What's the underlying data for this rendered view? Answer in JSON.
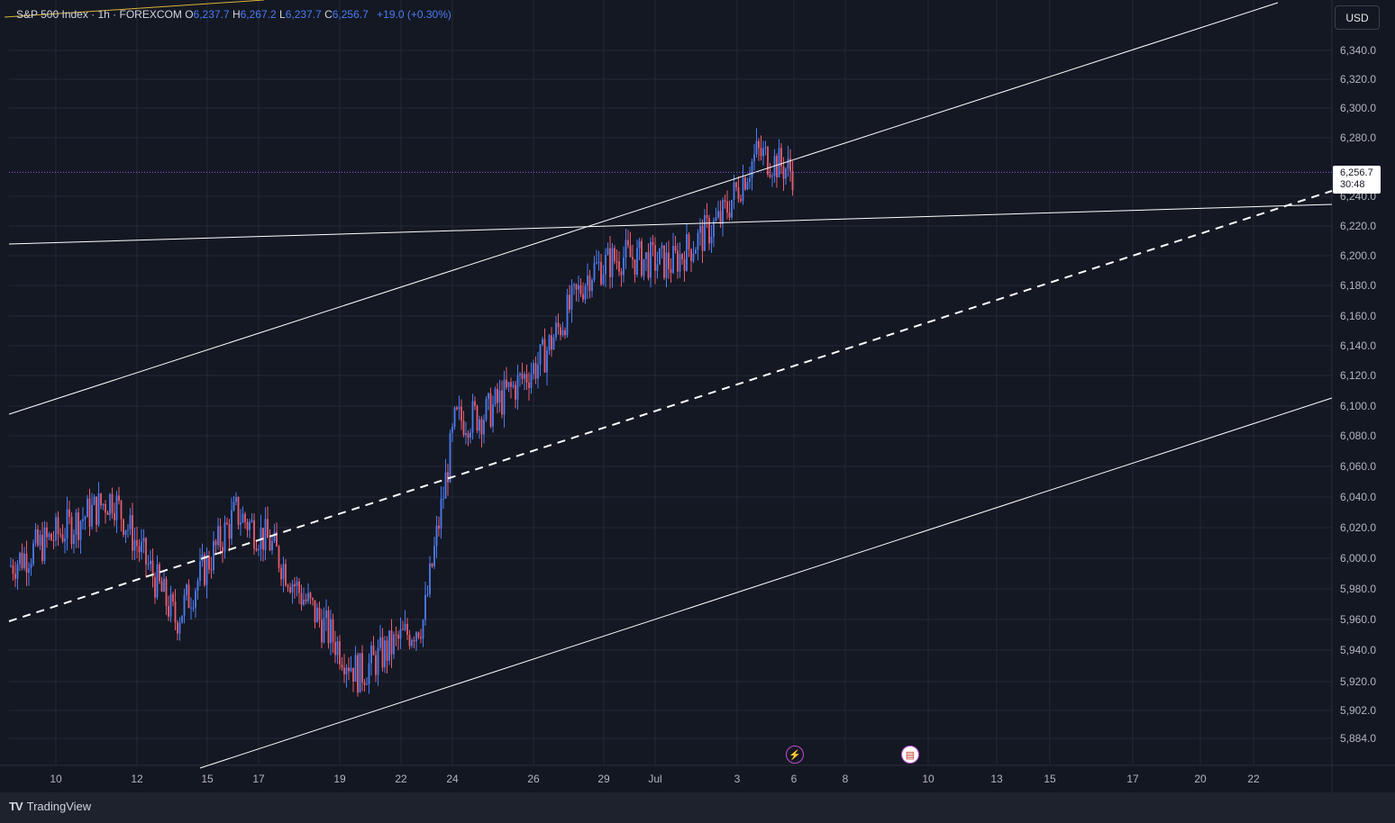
{
  "legend": {
    "symbol": "S&P 500 Index · 1h · FOREXCOM",
    "o_label": "O",
    "o": "6,237.7",
    "h_label": "H",
    "h": "6,267.2",
    "l_label": "L",
    "l": "6,237.7",
    "c_label": "C",
    "c": "6,256.7",
    "change": "+19.0 (+0.30%)"
  },
  "currency_button": "USD",
  "price_tag": {
    "price": "6,256.7",
    "countdown": "30:48"
  },
  "brand": {
    "logo": "TV",
    "name": "TradingView"
  },
  "events": [
    {
      "icon": "lightning-icon",
      "glyph": "⚡"
    },
    {
      "icon": "us-flag-icon",
      "glyph": "▤"
    }
  ],
  "colors": {
    "background": "#141823",
    "up": "#4c7cf3",
    "down": "#e85c6f",
    "lines": "#ffffff",
    "price_line": "#8c5cf0",
    "grid": "#232835"
  },
  "chart_data": {
    "type": "line",
    "title": "",
    "xlabel": "",
    "ylabel": "",
    "x_ticks": [
      "10",
      "12",
      "15",
      "17",
      "19",
      "22",
      "24",
      "26",
      "29",
      "Jul",
      "3",
      "6",
      "8",
      "10",
      "13",
      "15",
      "17",
      "20",
      "22"
    ],
    "y_ticks": [
      "6,340.0",
      "6,320.0",
      "6,300.0",
      "6,280.0",
      "6,240.0",
      "6,220.0",
      "6,200.0",
      "6,180.0",
      "6,160.0",
      "6,140.0",
      "6,120.0",
      "6,100.0",
      "6,080.0",
      "6,060.0",
      "6,040.0",
      "6,020.0",
      "6,000.0",
      "5,980.0",
      "5,960.0",
      "5,940.0",
      "5,920.0",
      "5,902.0",
      "5,884.0"
    ],
    "y_scale": "log",
    "ylim": [
      5875,
      6370
    ],
    "grid": true,
    "last_price": 6256.7,
    "series": [
      {
        "name": "",
        "x": [
          "Jun 9",
          "Jun 10",
          "Jun 11",
          "Jun 12",
          "Jun 13",
          "Jun 16",
          "Jun 17",
          "Jun 18",
          "Jun 20",
          "Jun 23",
          "Jun 24",
          "Jun 25",
          "Jun 26",
          "Jun 27",
          "Jun 30",
          "Jul 1",
          "Jul 2",
          "Jul 3",
          "Jul 7"
        ],
        "values": [
          5995,
          6020,
          6040,
          6000,
          5960,
          6030,
          6010,
          5980,
          5925,
          5960,
          6090,
          6095,
          6130,
          6190,
          6200,
          6195,
          6225,
          6270,
          6256.7
        ]
      }
    ]
  }
}
